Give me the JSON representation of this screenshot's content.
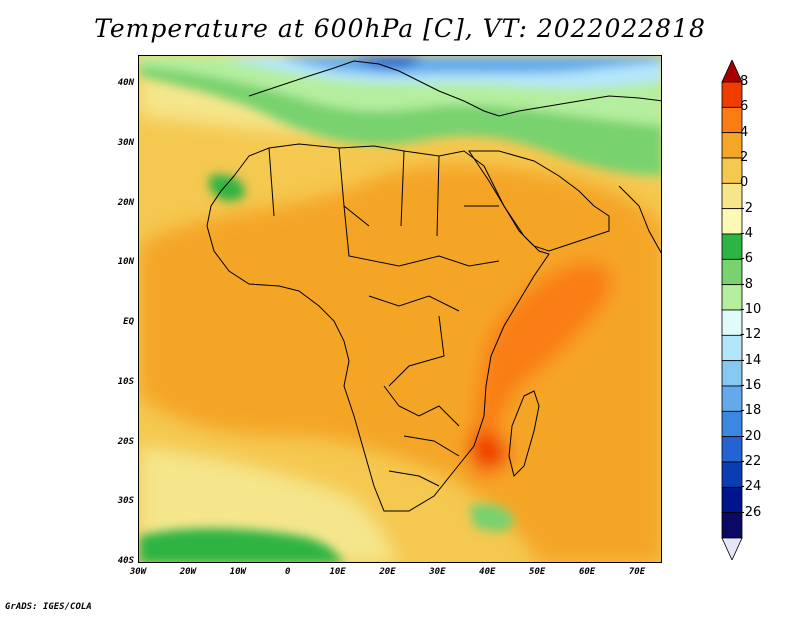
{
  "title": "Temperature at 600hPa [C], VT: 2022022818",
  "credit": "GrADS: IGES/COLA",
  "map": {
    "lat_ticks": [
      "40N",
      "30N",
      "20N",
      "10N",
      "EQ",
      "10S",
      "20S",
      "30S",
      "40S"
    ],
    "lon_ticks": [
      "30W",
      "20W",
      "10W",
      "0",
      "10E",
      "20E",
      "30E",
      "40E",
      "50E",
      "60E",
      "70E"
    ]
  },
  "colorbar": {
    "labels": [
      "8",
      "6",
      "4",
      "2",
      "0",
      "-2",
      "-4",
      "-6",
      "-8",
      "-10",
      "-12",
      "-14",
      "-16",
      "-18",
      "-20",
      "-22",
      "-24",
      "-26"
    ],
    "colors": [
      "#a50000",
      "#f03c00",
      "#fa7d14",
      "#f5a528",
      "#f5c850",
      "#f5e68c",
      "#fafab4",
      "#2db443",
      "#78d26e",
      "#b4ee9e",
      "#e1fafa",
      "#b4e6fa",
      "#87c8f0",
      "#64aaeb",
      "#3c87e1",
      "#2364d2",
      "#0a3cb4",
      "#00148c",
      "#0a0a64",
      "#e6e6fa"
    ]
  }
}
